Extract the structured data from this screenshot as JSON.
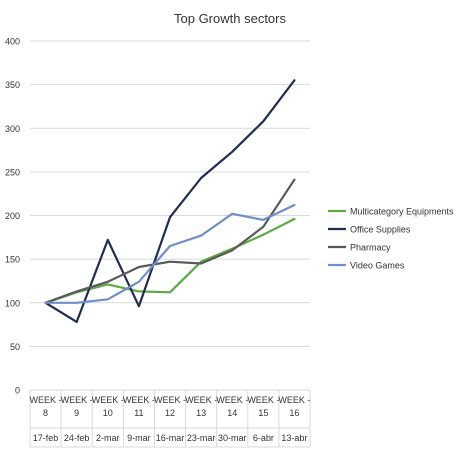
{
  "chart_data": {
    "type": "line",
    "title": "Top Growth sectors",
    "xlabel": "",
    "ylabel": "",
    "ylim": [
      0,
      400
    ],
    "yticks": [
      0,
      50,
      100,
      150,
      200,
      250,
      300,
      350,
      400
    ],
    "grid": true,
    "legend_position": "right",
    "categories": [
      {
        "week": "WEEK - 8",
        "date": "17-feb"
      },
      {
        "week": "WEEK - 9",
        "date": "24-feb"
      },
      {
        "week": "WEEK - 10",
        "date": "2-mar"
      },
      {
        "week": "WEEK - 11",
        "date": "9-mar"
      },
      {
        "week": "WEEK - 12",
        "date": "16-mar"
      },
      {
        "week": "WEEK - 13",
        "date": "23-mar"
      },
      {
        "week": "WEEK - 14",
        "date": "30-mar"
      },
      {
        "week": "WEEK - 15",
        "date": "6-abr"
      },
      {
        "week": "WEEK - 16",
        "date": "13-abr"
      }
    ],
    "series": [
      {
        "name": "Multicategory Equipments",
        "color": "#5daa45",
        "values": [
          100,
          112,
          121,
          113,
          112,
          147,
          162,
          178,
          196
        ]
      },
      {
        "name": "Office Supplies",
        "color": "#1f2d54",
        "values": [
          100,
          78,
          172,
          96,
          198,
          243,
          273,
          308,
          355
        ]
      },
      {
        "name": "Pharmacy",
        "color": "#595959",
        "values": [
          100,
          113,
          124,
          141,
          147,
          145,
          160,
          187,
          241
        ]
      },
      {
        "name": "Video Games",
        "color": "#6f8fc9",
        "values": [
          100,
          100,
          104,
          124,
          165,
          177,
          202,
          195,
          212
        ]
      }
    ]
  }
}
